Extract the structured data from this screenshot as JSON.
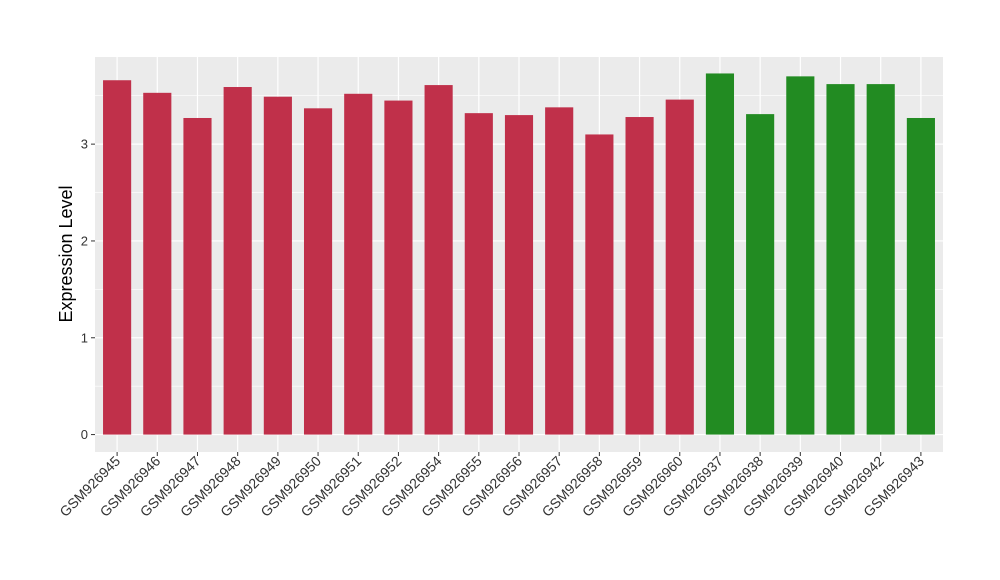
{
  "chart_data": {
    "type": "bar",
    "title": "",
    "xlabel": "",
    "ylabel": "Expression Level",
    "ylim": [
      -0.18,
      3.9
    ],
    "yticks": [
      0,
      1,
      2,
      3
    ],
    "grid": true,
    "legend": "none",
    "categories": [
      "GSM926945",
      "GSM926946",
      "GSM926947",
      "GSM926948",
      "GSM926949",
      "GSM926950",
      "GSM926951",
      "GSM926952",
      "GSM926954",
      "GSM926955",
      "GSM926956",
      "GSM926957",
      "GSM926958",
      "GSM926959",
      "GSM926960",
      "GSM926937",
      "GSM926938",
      "GSM926939",
      "GSM926940",
      "GSM926942",
      "GSM926943"
    ],
    "values": [
      3.66,
      3.53,
      3.27,
      3.59,
      3.49,
      3.37,
      3.52,
      3.45,
      3.61,
      3.32,
      3.3,
      3.38,
      3.1,
      3.28,
      3.46,
      3.73,
      3.31,
      3.7,
      3.62,
      3.62,
      3.27
    ],
    "bar_colors": [
      "#C0304A",
      "#C0304A",
      "#C0304A",
      "#C0304A",
      "#C0304A",
      "#C0304A",
      "#C0304A",
      "#C0304A",
      "#C0304A",
      "#C0304A",
      "#C0304A",
      "#C0304A",
      "#C0304A",
      "#C0304A",
      "#C0304A",
      "#228B22",
      "#228B22",
      "#228B22",
      "#228B22",
      "#228B22",
      "#228B22"
    ],
    "panel_background": "#EBEBEB",
    "grid_color": "#FFFFFF"
  }
}
